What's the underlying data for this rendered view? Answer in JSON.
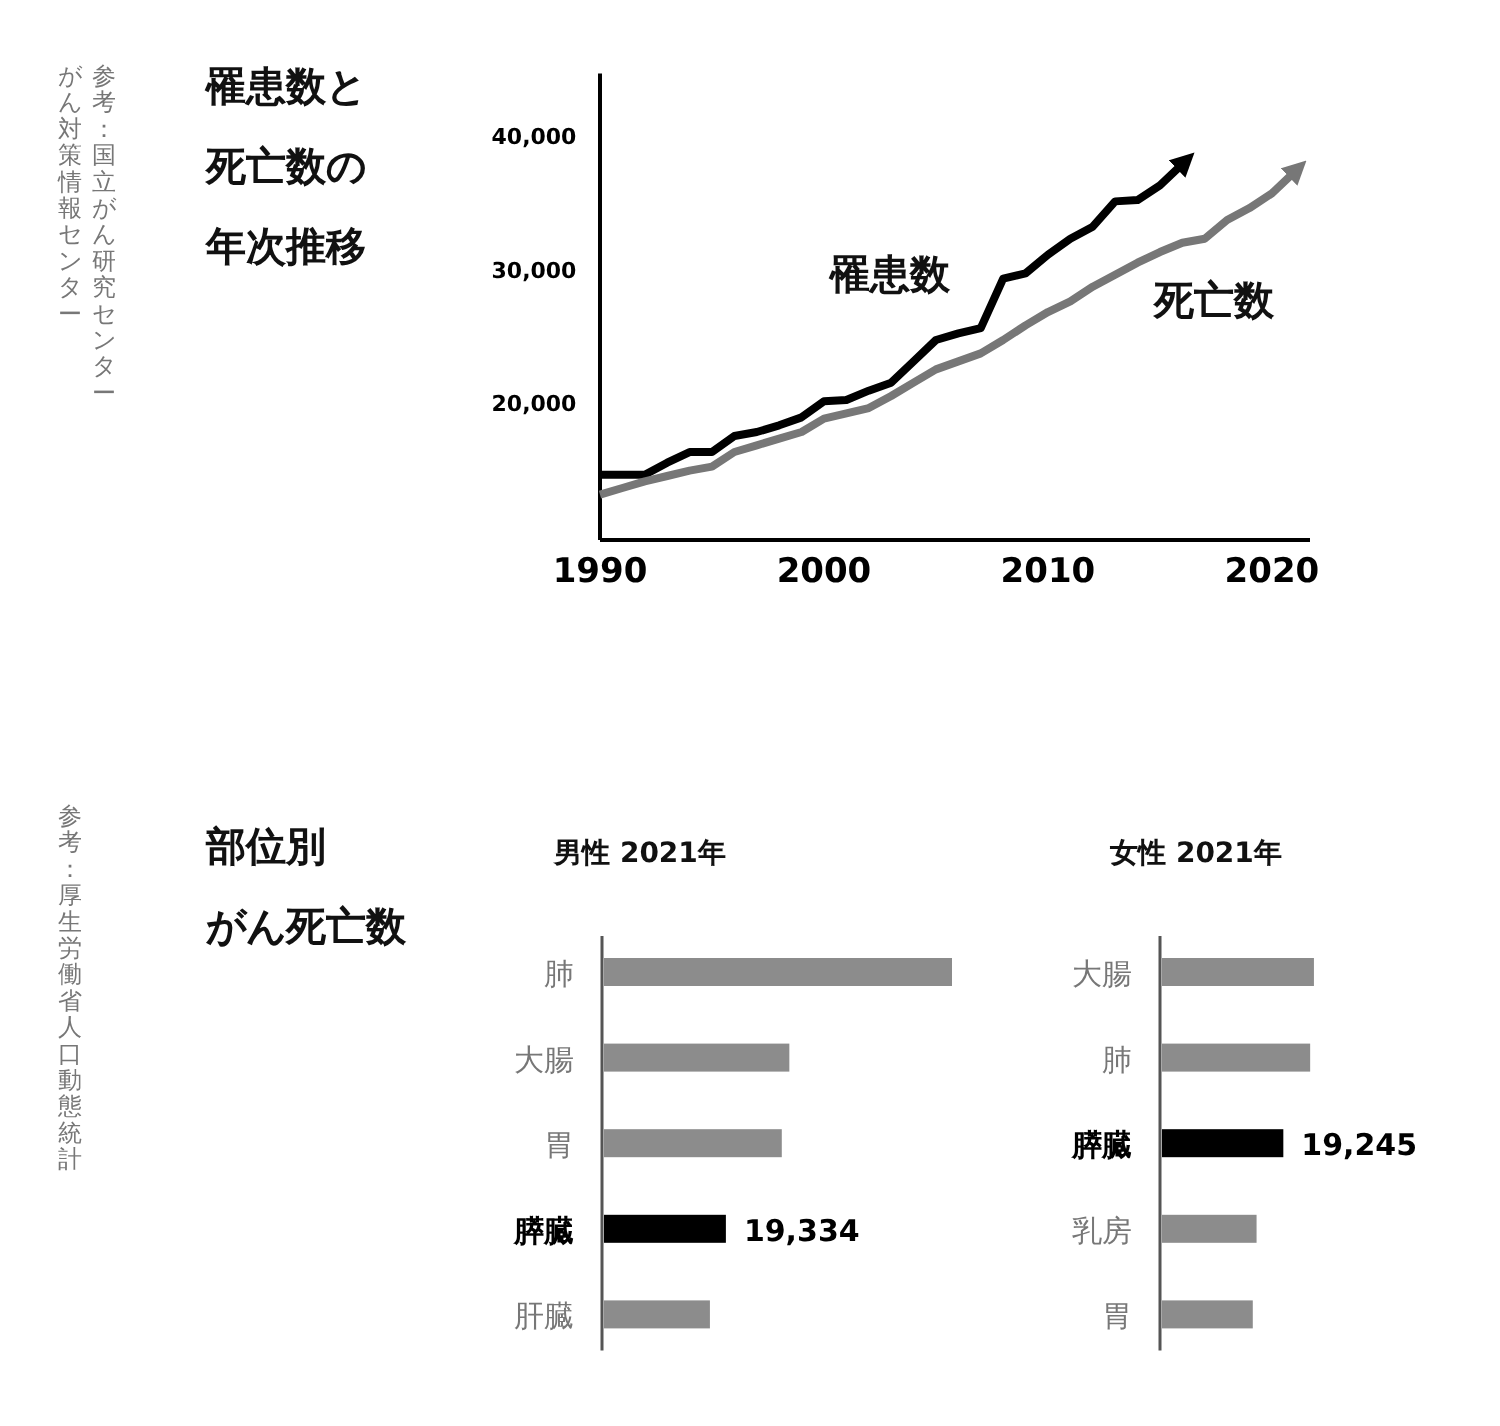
{
  "chart_data": [
    {
      "type": "line",
      "title": "罹患数と死亡数の年次推移",
      "annotations": [
        "参考：国立がん研究センター",
        "がん対策情報センター"
      ],
      "x": [
        1990,
        1991,
        1992,
        1993,
        1994,
        1995,
        1996,
        1997,
        1998,
        1999,
        2000,
        2001,
        2002,
        2003,
        2004,
        2005,
        2006,
        2007,
        2008,
        2009,
        2010,
        2011,
        2012,
        2013,
        2014,
        2015,
        2016
      ],
      "series": [
        {
          "name": "罹患数",
          "color": "#000000",
          "values": [
            14900,
            14900,
            14900,
            15800,
            16600,
            16600,
            17800,
            18100,
            18600,
            19200,
            20400,
            20500,
            21200,
            21800,
            23400,
            25000,
            25500,
            25900,
            29600,
            30000,
            31400,
            32600,
            33500,
            35400,
            35500,
            36600,
            38200
          ]
        },
        {
          "name": "死亡数",
          "color": "#777777",
          "x": [
            1990,
            1991,
            1992,
            1993,
            1994,
            1995,
            1996,
            1997,
            1998,
            1999,
            2000,
            2001,
            2002,
            2003,
            2004,
            2005,
            2006,
            2007,
            2008,
            2009,
            2010,
            2011,
            2012,
            2013,
            2014,
            2015,
            2016,
            2017,
            2018,
            2019,
            2020,
            2021
          ],
          "values": [
            13400,
            13900,
            14400,
            14800,
            15200,
            15500,
            16600,
            17100,
            17600,
            18100,
            19100,
            19500,
            19900,
            20800,
            21800,
            22800,
            23400,
            24000,
            25000,
            26100,
            27100,
            27900,
            29000,
            29900,
            30800,
            31600,
            32300,
            32600,
            34000,
            34900,
            36000,
            37600
          ]
        }
      ],
      "xlim": [
        1990,
        2021.7
      ],
      "xticks": [
        1990,
        2000,
        2010,
        2020
      ],
      "ylim": [
        10000,
        45000
      ],
      "yticks": [
        {
          "value": 20000,
          "label": "20,000"
        },
        {
          "value": 30000,
          "label": "30,000"
        },
        {
          "value": 40000,
          "label": "40,000"
        }
      ]
    },
    {
      "type": "bar",
      "orientation": "horizontal",
      "title": "部位別がん死亡数",
      "subtitle": "男性 2021年",
      "annotations": [
        "参考：厚生労働省人口動態統計"
      ],
      "categories": [
        "肺",
        "大腸",
        "胃",
        "膵臓",
        "肝臓"
      ],
      "values": [
        55200,
        29400,
        28200,
        19334,
        16800
      ],
      "colors": [
        "#8c8c8c",
        "#8c8c8c",
        "#8c8c8c",
        "#000000",
        "#8c8c8c"
      ],
      "value_labels": [
        null,
        null,
        null,
        "19,334",
        null
      ]
    },
    {
      "type": "bar",
      "orientation": "horizontal",
      "title": "女性 2021年",
      "categories": [
        "大腸",
        "肺",
        "膵臓",
        "乳房",
        "胃"
      ],
      "values": [
        24100,
        23500,
        19245,
        15000,
        14400
      ],
      "colors": [
        "#8c8c8c",
        "#8c8c8c",
        "#000000",
        "#8c8c8c",
        "#8c8c8c"
      ],
      "value_labels": [
        null,
        null,
        "19,245",
        null,
        null
      ]
    }
  ]
}
